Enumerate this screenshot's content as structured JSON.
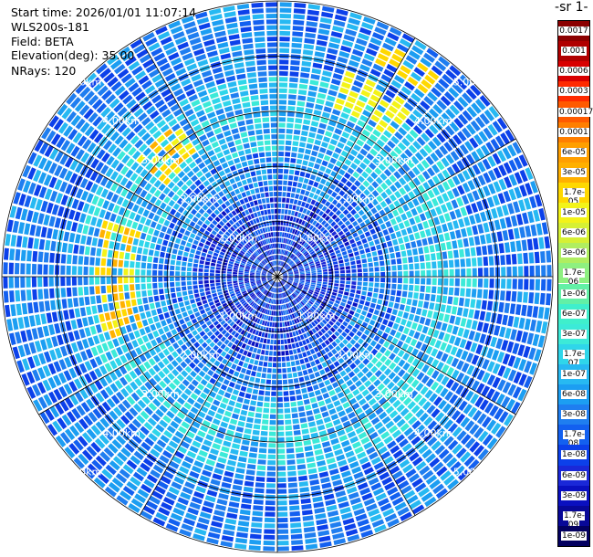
{
  "header": {
    "start_time": "Start time: 2026/01/01 11:07:14",
    "instrument": "WLS200s-181",
    "field": "Field: BETA",
    "elevation": "Elevation(deg): 35.00",
    "nrays": "NRays: 120"
  },
  "colorbar": {
    "title": "-1 sr-",
    "labels": [
      "0.0017",
      "0.001",
      "0.0006",
      "0.0003",
      "0.00017",
      "0.0001",
      "6e-05",
      "3e-05",
      "1.7e-05",
      "1e-05",
      "6e-06",
      "3e-06",
      "1.7e-06",
      "1e-06",
      "6e-07",
      "3e-07",
      "1.7e-07",
      "1e-07",
      "6e-08",
      "3e-08",
      "1.7e-08",
      "1e-08",
      "6e-09",
      "3e-09",
      "1.7e-09",
      "1e-09"
    ],
    "colors": [
      "#8b0000",
      "#b00000",
      "#d80000",
      "#ff2a00",
      "#ff5a00",
      "#ff7f00",
      "#ff9f00",
      "#ffb000",
      "#ffd800",
      "#f3f318",
      "#d6f034",
      "#b0ee60",
      "#8ef080",
      "#62f0a6",
      "#3fefcc",
      "#3cead8",
      "#2fd6ea",
      "#27b9f2",
      "#1c9ef2",
      "#1f7ef0",
      "#1360f0",
      "#0c40ea",
      "#1a28d8",
      "#0a10c0",
      "#080898",
      "#030060"
    ]
  },
  "chart_data": {
    "type": "heatmap",
    "projection": "polar PPI scan",
    "nrays": 120,
    "range_rings_labels": [
      "1.00km",
      "2.00km",
      "3.00km",
      "4.00km",
      "5.00km"
    ],
    "range_rings_km": [
      1,
      2,
      3,
      4,
      5
    ],
    "max_range_km": 5.0,
    "field": "BETA",
    "color_scale": "log",
    "value_range": [
      1e-09,
      0.0017
    ],
    "dominant_values": {
      "near_center": 1e-08,
      "mid_range": 3e-08,
      "ring_band_2.5_3.5km": 1e-07,
      "hotspot_west_and_northwest": 1.7e-05,
      "outer_edge": 3e-08
    }
  }
}
